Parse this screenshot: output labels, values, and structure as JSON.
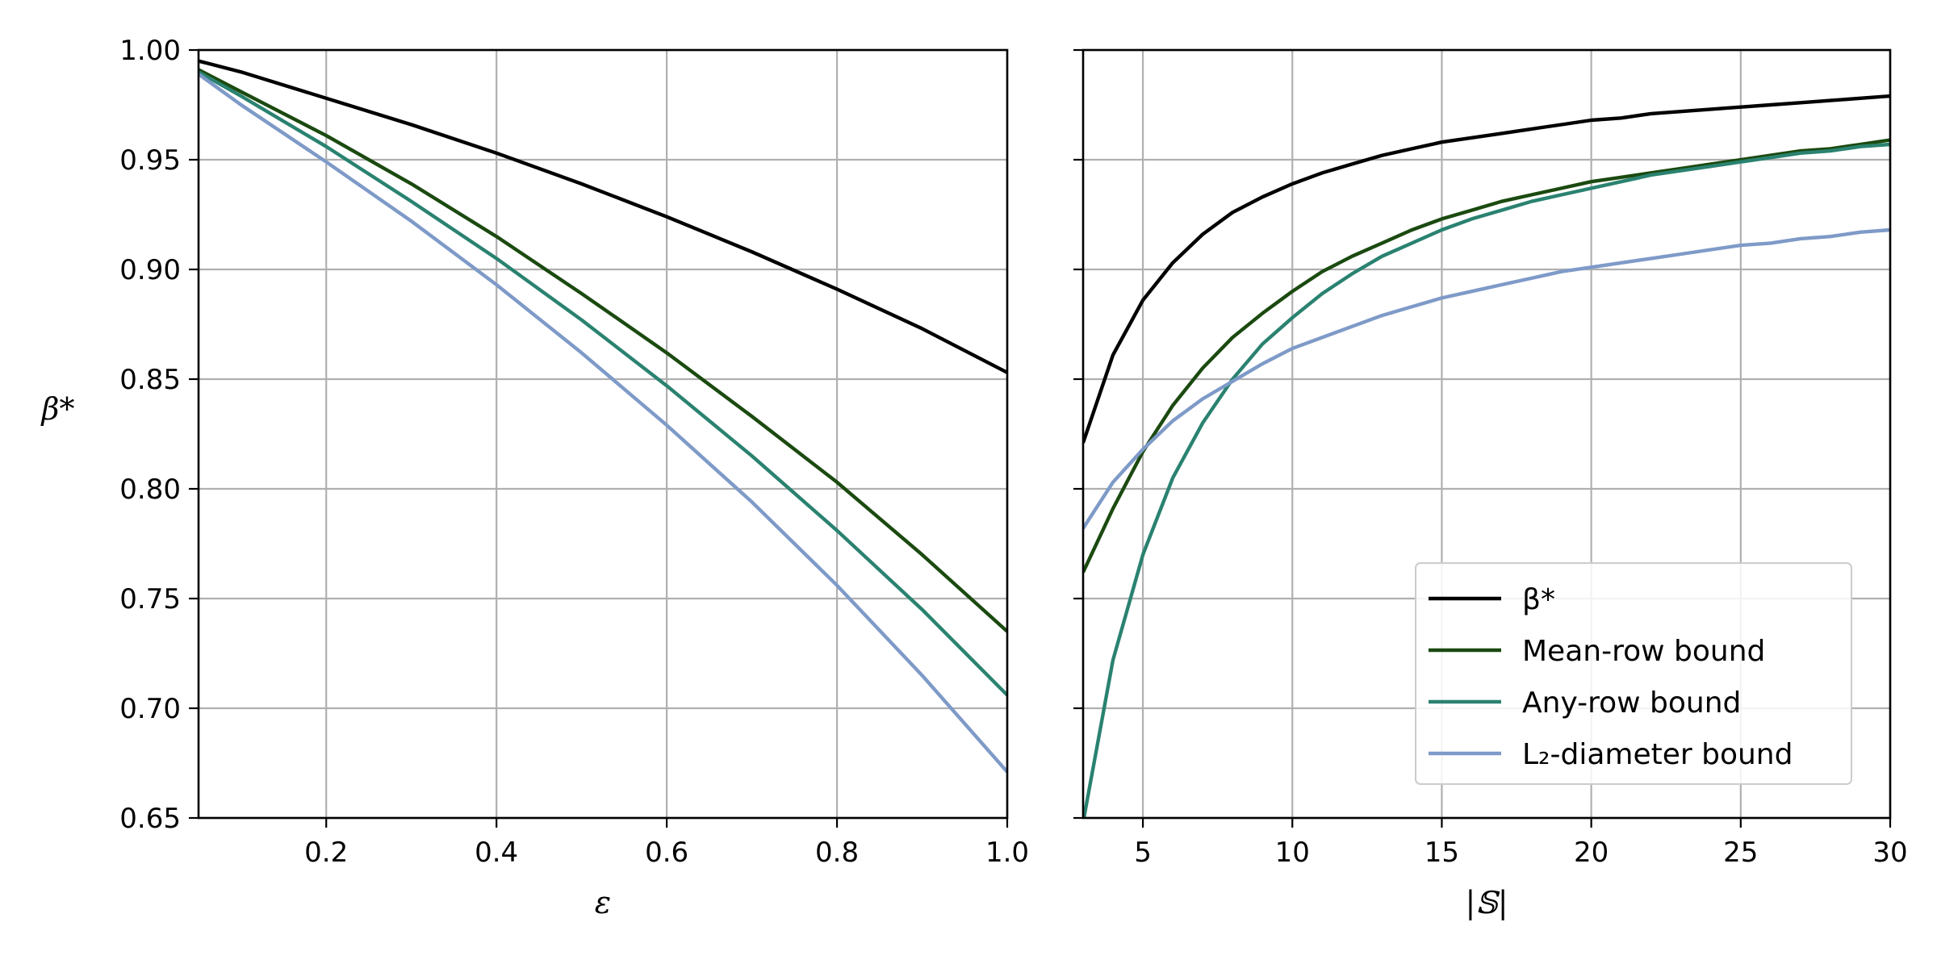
{
  "chart_data": [
    {
      "type": "line",
      "xlabel": "ε",
      "ylabel": "β*",
      "xlim": [
        0.05,
        1.0
      ],
      "ylim": [
        0.65,
        1.0
      ],
      "xticks": [
        0.2,
        0.4,
        0.6,
        0.8,
        1.0
      ],
      "xtick_labels": [
        "0.2",
        "0.4",
        "0.6",
        "0.8",
        "1.0"
      ],
      "yticks": [
        0.65,
        0.7,
        0.75,
        0.8,
        0.85,
        0.9,
        0.95,
        1.0
      ],
      "ytick_labels": [
        "0.65",
        "0.70",
        "0.75",
        "0.80",
        "0.85",
        "0.90",
        "0.95",
        "1.00"
      ],
      "grid": true,
      "x": [
        0.05,
        0.1,
        0.2,
        0.3,
        0.4,
        0.5,
        0.6,
        0.7,
        0.8,
        0.9,
        1.0
      ],
      "series": [
        {
          "color": "#000000",
          "values": [
            0.995,
            0.99,
            0.978,
            0.966,
            0.953,
            0.939,
            0.924,
            0.908,
            0.891,
            0.873,
            0.853
          ]
        },
        {
          "color": "#1b4a10",
          "values": [
            0.991,
            0.981,
            0.961,
            0.939,
            0.915,
            0.889,
            0.862,
            0.833,
            0.803,
            0.77,
            0.735
          ]
        },
        {
          "color": "#2a8270",
          "values": [
            0.99,
            0.979,
            0.956,
            0.931,
            0.905,
            0.877,
            0.847,
            0.815,
            0.781,
            0.745,
            0.706
          ]
        },
        {
          "color": "#7e9ac8",
          "values": [
            0.989,
            0.975,
            0.949,
            0.922,
            0.893,
            0.862,
            0.829,
            0.794,
            0.756,
            0.715,
            0.671
          ]
        }
      ]
    },
    {
      "type": "line",
      "xlabel": "|𝕊|",
      "ylabel": "",
      "xlim": [
        3,
        30
      ],
      "ylim": [
        0.65,
        1.0
      ],
      "xticks": [
        5,
        10,
        15,
        20,
        25,
        30
      ],
      "xtick_labels": [
        "5",
        "10",
        "15",
        "20",
        "25",
        "30"
      ],
      "yticks": [
        0.65,
        0.7,
        0.75,
        0.8,
        0.85,
        0.9,
        0.95,
        1.0
      ],
      "grid": true,
      "x": [
        3,
        4,
        5,
        6,
        7,
        8,
        9,
        10,
        11,
        12,
        13,
        14,
        15,
        16,
        17,
        18,
        19,
        20,
        21,
        22,
        23,
        24,
        25,
        26,
        27,
        28,
        29,
        30
      ],
      "series": [
        {
          "name": "β*",
          "color": "#000000",
          "values": [
            0.821,
            0.861,
            0.886,
            0.903,
            0.916,
            0.926,
            0.933,
            0.939,
            0.944,
            0.948,
            0.952,
            0.955,
            0.958,
            0.96,
            0.962,
            0.964,
            0.966,
            0.968,
            0.969,
            0.971,
            0.972,
            0.973,
            0.974,
            0.975,
            0.976,
            0.977,
            0.978,
            0.979
          ]
        },
        {
          "name": "Mean-row bound",
          "color": "#1b4a10",
          "values": [
            0.762,
            0.791,
            0.817,
            0.838,
            0.855,
            0.869,
            0.88,
            0.89,
            0.899,
            0.906,
            0.912,
            0.918,
            0.923,
            0.927,
            0.931,
            0.934,
            0.937,
            0.94,
            0.942,
            0.944,
            0.946,
            0.948,
            0.95,
            0.952,
            0.954,
            0.955,
            0.957,
            0.959
          ]
        },
        {
          "name": "Any-row bound",
          "color": "#2a8270",
          "values": [
            0.648,
            0.722,
            0.77,
            0.805,
            0.83,
            0.85,
            0.866,
            0.878,
            0.889,
            0.898,
            0.906,
            0.912,
            0.918,
            0.923,
            0.927,
            0.931,
            0.934,
            0.937,
            0.94,
            0.943,
            0.945,
            0.947,
            0.949,
            0.951,
            0.953,
            0.954,
            0.956,
            0.957
          ]
        },
        {
          "name": "L₂-diameter bound",
          "color": "#7e9ac8",
          "values": [
            0.782,
            0.803,
            0.818,
            0.831,
            0.841,
            0.849,
            0.857,
            0.864,
            0.869,
            0.874,
            0.879,
            0.883,
            0.887,
            0.89,
            0.893,
            0.896,
            0.899,
            0.901,
            0.903,
            0.905,
            0.907,
            0.909,
            0.911,
            0.912,
            0.914,
            0.915,
            0.917,
            0.918
          ]
        }
      ],
      "legend": {
        "placement": "lower-right",
        "entries": [
          "β*",
          "Mean-row bound",
          "Any-row bound",
          "L₂-diameter bound"
        ]
      }
    }
  ]
}
